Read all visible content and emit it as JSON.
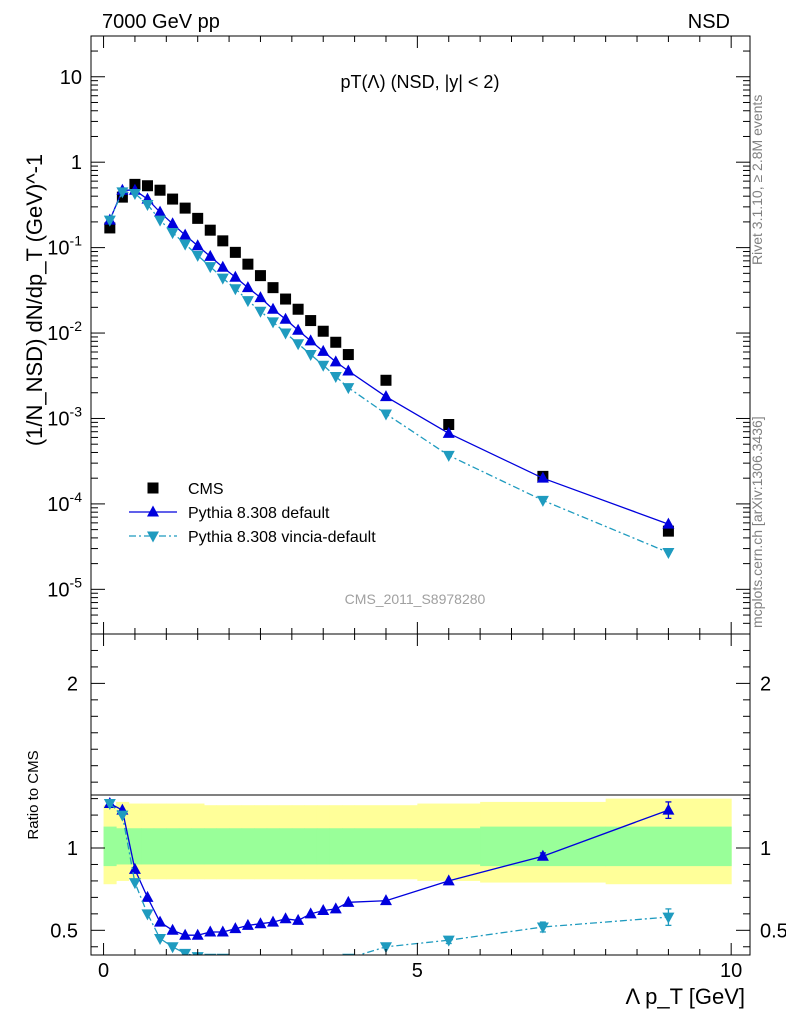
{
  "header": {
    "left": "7000 GeV pp",
    "right": "NSD"
  },
  "side_labels": {
    "rivet": "Rivet 3.1.10, ≥ 2.8M events",
    "mcplots": "mcplots.cern.ch [arXiv:1306.3436]"
  },
  "chart_data": [
    {
      "type": "scatter",
      "title": "pT(Λ) (NSD, |y| < 2)",
      "analysis_tag": "CMS_2011_S8978280",
      "ylabel": "(1/N_NSD) dN/dp_T (GeV)^-1",
      "yscale": "log",
      "ylim": [
        3e-06,
        30
      ],
      "xlim": [
        -0.2,
        10.3
      ],
      "xticks": [
        0,
        5,
        10
      ],
      "ytick_labels": [
        "10^-5",
        "10^-4",
        "10^-3",
        "10^-2",
        "10^-1",
        "1",
        "10"
      ],
      "legend": [
        "CMS",
        "Pythia 8.308 default",
        "Pythia 8.308 vincia-default"
      ],
      "legend_position": "bottom-left",
      "x": [
        0.1,
        0.3,
        0.5,
        0.7,
        0.9,
        1.1,
        1.3,
        1.5,
        1.7,
        1.9,
        2.1,
        2.3,
        2.5,
        2.7,
        2.9,
        3.1,
        3.3,
        3.5,
        3.7,
        3.9,
        4.5,
        5.5,
        7.0,
        9.0
      ],
      "series": [
        {
          "name": "CMS",
          "marker": "square",
          "color": "#000000",
          "values": [
            0.17,
            0.39,
            0.55,
            0.53,
            0.47,
            0.37,
            0.29,
            0.22,
            0.16,
            0.12,
            0.088,
            0.064,
            0.047,
            0.034,
            0.025,
            0.019,
            0.014,
            0.0105,
            0.0078,
            0.0056,
            0.0028,
            0.00085,
            0.00021,
            4.8e-05
          ]
        },
        {
          "name": "Pythia 8.308 default",
          "marker": "triangle-up",
          "color": "#0000dd",
          "dash": "",
          "values": [
            0.21,
            0.47,
            0.47,
            0.37,
            0.26,
            0.19,
            0.14,
            0.105,
            0.079,
            0.059,
            0.045,
            0.034,
            0.026,
            0.019,
            0.0145,
            0.0108,
            0.0081,
            0.0061,
            0.0046,
            0.0036,
            0.0018,
            0.00067,
            0.0002,
            5.8e-05
          ]
        },
        {
          "name": "Pythia 8.308 vincia-default",
          "marker": "triangle-down",
          "color": "#1f9bbf",
          "dash": "7,3,2,3",
          "values": [
            0.21,
            0.45,
            0.43,
            0.32,
            0.21,
            0.15,
            0.11,
            0.081,
            0.06,
            0.044,
            0.033,
            0.024,
            0.018,
            0.0135,
            0.01,
            0.0075,
            0.0056,
            0.0042,
            0.0031,
            0.0023,
            0.00113,
            0.00037,
            0.00011,
            2.7e-05
          ]
        }
      ]
    },
    {
      "type": "scatter",
      "ylabel": "Ratio to CMS",
      "xlabel": "Λ p_T [GeV]",
      "xlim": [
        -0.2,
        10.3
      ],
      "ylim": [
        0.35,
        2.3
      ],
      "xticks": [
        0,
        5,
        10
      ],
      "yticks": [
        0.5,
        1,
        2
      ],
      "reference_line": 1,
      "x": [
        0.1,
        0.3,
        0.5,
        0.7,
        0.9,
        1.1,
        1.3,
        1.5,
        1.7,
        1.9,
        2.1,
        2.3,
        2.5,
        2.7,
        2.9,
        3.1,
        3.3,
        3.5,
        3.7,
        3.9,
        4.5,
        5.5,
        7.0,
        9.0
      ],
      "bands": {
        "edges": [
          0,
          0.2,
          0.4,
          0.6,
          0.8,
          1.0,
          1.2,
          1.4,
          1.6,
          1.8,
          2.0,
          2.2,
          2.4,
          2.6,
          2.8,
          3.0,
          3.2,
          3.4,
          3.6,
          3.8,
          4.0,
          5.0,
          6.0,
          8.0,
          10.0
        ],
        "outer_color": "#ffff99",
        "inner_color": "#99ff99",
        "outer_lo": [
          0.78,
          0.8,
          0.81,
          0.81,
          0.81,
          0.81,
          0.81,
          0.81,
          0.81,
          0.81,
          0.81,
          0.81,
          0.81,
          0.81,
          0.81,
          0.81,
          0.81,
          0.81,
          0.81,
          0.81,
          0.81,
          0.8,
          0.79,
          0.78
        ],
        "outer_hi": [
          1.26,
          1.28,
          1.27,
          1.27,
          1.27,
          1.27,
          1.27,
          1.27,
          1.26,
          1.26,
          1.26,
          1.26,
          1.26,
          1.26,
          1.26,
          1.26,
          1.26,
          1.26,
          1.26,
          1.26,
          1.26,
          1.27,
          1.28,
          1.3
        ],
        "inner_lo": [
          0.89,
          0.9,
          0.9,
          0.9,
          0.9,
          0.9,
          0.9,
          0.9,
          0.9,
          0.9,
          0.9,
          0.9,
          0.9,
          0.9,
          0.9,
          0.9,
          0.9,
          0.9,
          0.9,
          0.9,
          0.9,
          0.9,
          0.89,
          0.89
        ],
        "inner_hi": [
          1.13,
          1.12,
          1.12,
          1.12,
          1.12,
          1.12,
          1.12,
          1.12,
          1.12,
          1.12,
          1.12,
          1.12,
          1.12,
          1.12,
          1.12,
          1.12,
          1.12,
          1.12,
          1.12,
          1.12,
          1.12,
          1.12,
          1.13,
          1.13
        ]
      },
      "series": [
        {
          "name": "Pythia 8.308 default",
          "marker": "triangle-up",
          "color": "#0000dd",
          "dash": "",
          "values": [
            1.27,
            1.23,
            0.87,
            0.7,
            0.55,
            0.5,
            0.47,
            0.47,
            0.49,
            0.49,
            0.51,
            0.53,
            0.54,
            0.55,
            0.57,
            0.56,
            0.6,
            0.62,
            0.63,
            0.67,
            0.68,
            0.8,
            0.95,
            1.23
          ],
          "err": [
            0,
            0,
            0,
            0,
            0,
            0,
            0,
            0,
            0,
            0,
            0,
            0,
            0,
            0,
            0,
            0,
            0,
            0,
            0,
            0,
            0,
            0,
            0.02,
            0.05
          ]
        },
        {
          "name": "Pythia 8.308 vincia-default",
          "marker": "triangle-down",
          "color": "#1f9bbf",
          "dash": "7,3,2,3",
          "values": [
            1.27,
            1.2,
            0.79,
            0.6,
            0.45,
            0.4,
            0.36,
            0.34,
            0.33,
            0.33,
            0.32,
            0.32,
            0.32,
            0.32,
            0.32,
            0.32,
            0.32,
            0.32,
            0.32,
            0.33,
            0.4,
            0.44,
            0.52,
            0.58
          ],
          "err": [
            0,
            0,
            0,
            0,
            0,
            0,
            0,
            0,
            0,
            0,
            0,
            0,
            0,
            0,
            0,
            0,
            0,
            0,
            0,
            0,
            0,
            0.02,
            0.03,
            0.05
          ]
        }
      ]
    }
  ]
}
